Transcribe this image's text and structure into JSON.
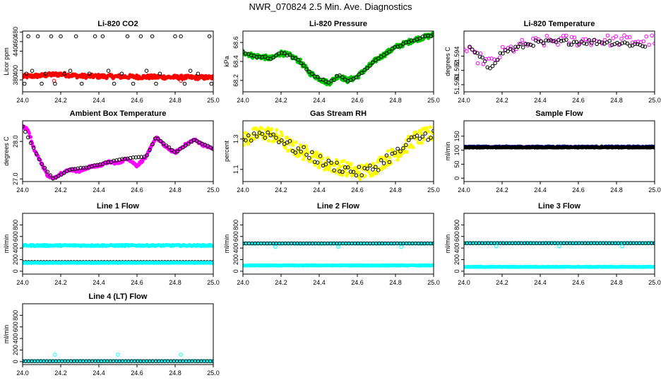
{
  "page_title": "NWR_070824  2.5 Min. Ave. Diagnostics",
  "colors": {
    "frame": "#000000",
    "black_points": "#000000",
    "red": "#ff0000",
    "green": "#00c800",
    "magenta": "#ff00ff",
    "yellow": "#ffff00",
    "cyan": "#00ffff",
    "navy": "#000080"
  },
  "chart_data": [
    {
      "type": "scatter",
      "title": "Li-820 CO2",
      "xlabel": "",
      "ylabel": "Licor ppm",
      "xlim": [
        24.0,
        25.0
      ],
      "ylim": [
        355,
        482
      ],
      "xticks": [
        24.0,
        24.2,
        24.4,
        24.6,
        24.8,
        25.0
      ],
      "yticks": [
        380,
        400,
        440,
        460,
        480
      ],
      "ytick_labels": [
        "380",
        "400",
        "440",
        "460",
        "480"
      ],
      "series": [
        {
          "name": "co2-dense",
          "color": "#ff0000",
          "style": "dense",
          "x": [
            24.0,
            24.1,
            24.15,
            24.2,
            24.3,
            24.5,
            24.7,
            24.9,
            25.0
          ],
          "y": [
            387,
            389,
            391,
            392,
            388,
            387,
            386,
            385,
            385
          ],
          "jitter": 4
        },
        {
          "name": "co2-sparse-red",
          "color": "#ff0000",
          "style": "open",
          "x": [
            24.165,
            24.83
          ],
          "y": [
            378,
            378
          ]
        },
        {
          "name": "co2-sparse-black",
          "color": "#000000",
          "style": "open",
          "x": [
            24.03,
            24.08,
            24.15,
            24.2,
            24.28,
            24.38,
            24.42,
            24.55,
            24.62,
            24.68,
            24.8,
            24.83,
            24.98,
            24.01,
            24.1,
            24.17,
            24.31,
            24.48,
            24.58,
            24.7,
            24.85,
            24.99,
            24.05,
            24.25,
            24.45,
            24.65,
            24.88,
            24.02,
            24.12,
            24.22,
            24.35,
            24.52,
            24.72,
            24.92
          ],
          "y": [
            471,
            471,
            471,
            471,
            471,
            471,
            471,
            471,
            471,
            471,
            471,
            471,
            471,
            372,
            372,
            372,
            372,
            372,
            372,
            372,
            372,
            372,
            399,
            399,
            399,
            399,
            399,
            393,
            393,
            393,
            393,
            393,
            393,
            393
          ]
        }
      ]
    },
    {
      "type": "scatter",
      "title": "Li-820 Pressure",
      "xlabel": "",
      "ylabel": "kPa",
      "xlim": [
        24.0,
        25.0
      ],
      "ylim": [
        68.08,
        68.72
      ],
      "xticks": [
        24.0,
        24.2,
        24.4,
        24.6,
        24.8,
        25.0
      ],
      "yticks": [
        68.2,
        68.4,
        68.6
      ],
      "ytick_labels": [
        "68.2",
        "68.4",
        "68.6"
      ],
      "series": [
        {
          "name": "pressure-dense",
          "color": "#00c800",
          "style": "dense",
          "x": [
            24.0,
            24.05,
            24.1,
            24.15,
            24.2,
            24.25,
            24.3,
            24.35,
            24.4,
            24.45,
            24.5,
            24.55,
            24.6,
            24.65,
            24.7,
            24.8,
            24.9,
            25.0
          ],
          "y": [
            68.5,
            68.46,
            68.45,
            68.43,
            68.49,
            68.46,
            68.4,
            68.28,
            68.22,
            68.17,
            68.25,
            68.2,
            68.24,
            68.33,
            68.42,
            68.55,
            68.63,
            68.68
          ],
          "jitter": 0.025
        },
        {
          "name": "pressure-open",
          "color": "#000000",
          "style": "open",
          "x": [
            24.0,
            24.05,
            24.1,
            24.15,
            24.2,
            24.25,
            24.3,
            24.35,
            24.4,
            24.45,
            24.5,
            24.55,
            24.6,
            24.65,
            24.7,
            24.8,
            24.9,
            25.0
          ],
          "y": [
            68.5,
            68.46,
            68.45,
            68.43,
            68.49,
            68.46,
            68.4,
            68.28,
            68.22,
            68.17,
            68.25,
            68.2,
            68.24,
            68.33,
            68.42,
            68.55,
            68.63,
            68.68
          ],
          "jitter": 0.01
        }
      ]
    },
    {
      "type": "scatter",
      "title": "Li-820 Temperature",
      "xlabel": "",
      "ylabel": "degrees C",
      "xlim": [
        24.0,
        25.0
      ],
      "ylim": [
        51.589,
        51.5975
      ],
      "xticks": [
        24.0,
        24.2,
        24.4,
        24.6,
        24.8,
        25.0
      ],
      "yticks": [
        51.59,
        51.592,
        51.594
      ],
      "ytick_labels": [
        "51.590",
        "51.592",
        "51.594"
      ],
      "series": [
        {
          "name": "temp-dense",
          "color": "#ff00ff",
          "style": "open",
          "x": [
            24.0,
            24.05,
            24.1,
            24.15,
            24.2,
            24.3,
            24.4,
            24.5,
            24.6,
            24.7,
            24.8,
            24.9,
            25.0
          ],
          "y": [
            51.595,
            51.594,
            51.5935,
            51.593,
            51.5945,
            51.5955,
            51.596,
            51.5962,
            51.5962,
            51.5962,
            51.5962,
            51.5962,
            51.5962
          ],
          "jitter": 0.0008
        },
        {
          "name": "temp-open",
          "color": "#000000",
          "style": "open",
          "x": [
            24.03,
            24.08,
            24.13,
            24.2,
            24.35,
            24.55,
            24.75,
            24.95
          ],
          "y": [
            51.595,
            51.594,
            51.5923,
            51.5945,
            51.5958,
            51.596,
            51.596,
            51.5955
          ],
          "jitter": 0.0004
        }
      ]
    },
    {
      "type": "scatter",
      "title": "Ambient Box Temperature",
      "xlabel": "",
      "ylabel": "degrees C",
      "xlim": [
        24.0,
        25.0
      ],
      "ylim": [
        26.93,
        28.55
      ],
      "xticks": [
        24.0,
        24.2,
        24.4,
        24.6,
        24.8,
        25.0
      ],
      "yticks": [
        27.0,
        28.0
      ],
      "ytick_labels": [
        "27.0",
        "28.0"
      ],
      "series": [
        {
          "name": "box-temp-magenta",
          "color": "#ff00ff",
          "style": "dense",
          "x": [
            24.0,
            24.03,
            24.06,
            24.1,
            24.13,
            24.16,
            24.2,
            24.25,
            24.3,
            24.35,
            24.4,
            24.45,
            24.5,
            24.55,
            24.6,
            24.65,
            24.7,
            24.75,
            24.8,
            24.85,
            24.9,
            24.95,
            25.0
          ],
          "y": [
            28.4,
            28.3,
            27.8,
            27.4,
            27.1,
            27.0,
            27.15,
            27.25,
            27.2,
            27.32,
            27.35,
            27.45,
            27.42,
            27.55,
            27.35,
            27.6,
            28.12,
            27.85,
            27.7,
            27.9,
            28.05,
            27.9,
            27.8
          ],
          "jitter": 0.03
        },
        {
          "name": "box-temp-open",
          "color": "#000000",
          "style": "open",
          "x": [
            24.0,
            24.06,
            24.1,
            24.16,
            24.25,
            24.35,
            24.45,
            24.55,
            24.65,
            24.7,
            24.8,
            24.9,
            25.0
          ],
          "y": [
            28.4,
            27.8,
            27.4,
            27.0,
            27.25,
            27.32,
            27.45,
            27.55,
            27.6,
            28.12,
            27.7,
            28.05,
            27.8
          ],
          "jitter": 0.01
        }
      ]
    },
    {
      "type": "scatter",
      "title": "Gas Stream RH",
      "xlabel": "",
      "ylabel": "percent",
      "xlim": [
        24.0,
        25.0
      ],
      "ylim": [
        1.02,
        1.42
      ],
      "xticks": [
        24.0,
        24.2,
        24.4,
        24.6,
        24.8,
        25.0
      ],
      "yticks": [
        1.1,
        1.3
      ],
      "ytick_labels": [
        "1.1",
        "1.3"
      ],
      "series": [
        {
          "name": "rh-yellow",
          "color": "#ffff00",
          "style": "dense",
          "x": [
            24.0,
            24.05,
            24.1,
            24.15,
            24.2,
            24.25,
            24.3,
            24.35,
            24.4,
            24.45,
            24.5,
            24.55,
            24.6,
            24.65,
            24.7,
            24.75,
            24.8,
            24.85,
            24.9,
            24.95,
            25.0
          ],
          "y": [
            1.3,
            1.32,
            1.34,
            1.33,
            1.3,
            1.25,
            1.22,
            1.2,
            1.16,
            1.13,
            1.12,
            1.1,
            1.08,
            1.09,
            1.12,
            1.17,
            1.2,
            1.25,
            1.3,
            1.32,
            1.34
          ],
          "jitter": 0.05
        },
        {
          "name": "rh-open",
          "color": "#000000",
          "style": "open",
          "x": [
            24.0,
            24.05,
            24.1,
            24.15,
            24.2,
            24.25,
            24.3,
            24.35,
            24.4,
            24.45,
            24.5,
            24.55,
            24.6,
            24.65,
            24.7,
            24.75,
            24.8,
            24.85,
            24.9,
            24.95,
            25.0
          ],
          "y": [
            1.3,
            1.32,
            1.34,
            1.33,
            1.3,
            1.25,
            1.22,
            1.2,
            1.16,
            1.13,
            1.12,
            1.1,
            1.08,
            1.09,
            1.12,
            1.17,
            1.2,
            1.25,
            1.3,
            1.32,
            1.34
          ],
          "jitter": 0.035
        }
      ]
    },
    {
      "type": "scatter",
      "title": "Sample Flow",
      "xlabel": "",
      "ylabel": "ml/min",
      "xlim": [
        24.0,
        25.0
      ],
      "ylim": [
        -12,
        205
      ],
      "xticks": [
        24.0,
        24.2,
        24.4,
        24.6,
        24.8,
        25.0
      ],
      "yticks": [
        0,
        50,
        100,
        150
      ],
      "ytick_labels": [
        "0",
        "50",
        "100",
        "150"
      ],
      "series": [
        {
          "name": "sample-flow-navy",
          "color": "#000080",
          "style": "dense",
          "x": [
            24.0,
            25.0
          ],
          "y": [
            112,
            112
          ],
          "jitter": 2
        },
        {
          "name": "sample-flow-open",
          "color": "#000000",
          "style": "dense",
          "x": [
            24.0,
            25.0
          ],
          "y": [
            110,
            110
          ],
          "jitter": 1
        }
      ]
    },
    {
      "type": "scatter",
      "title": "Line 1 Flow",
      "xlabel": "",
      "ylabel": "ml/min",
      "xlim": [
        24.0,
        25.0
      ],
      "ylim": [
        -50,
        1000
      ],
      "xticks": [
        24.0,
        24.2,
        24.4,
        24.6,
        24.8,
        25.0
      ],
      "yticks": [
        0,
        200,
        400,
        600,
        800
      ],
      "ytick_labels": [
        "0",
        "200",
        "400",
        "600",
        "800"
      ],
      "series": [
        {
          "name": "line1-cyan",
          "color": "#00ffff",
          "style": "dense",
          "x": [
            24.0,
            25.0
          ],
          "y": [
            445,
            445
          ],
          "jitter": 12
        },
        {
          "name": "line1-black",
          "color": "#000000",
          "style": "open",
          "x": [
            24.0,
            25.0
          ],
          "y": [
            160,
            160
          ],
          "jitter": 0,
          "count": 64
        },
        {
          "name": "line1-cyan-low",
          "color": "#00ffff",
          "style": "dense",
          "x": [
            24.0,
            25.0
          ],
          "y": [
            145,
            145
          ],
          "jitter": 3
        }
      ]
    },
    {
      "type": "scatter",
      "title": "Line 2 Flow",
      "xlabel": "",
      "ylabel": "ml/min",
      "xlim": [
        24.0,
        25.0
      ],
      "ylim": [
        -50,
        1000
      ],
      "xticks": [
        24.0,
        24.2,
        24.4,
        24.6,
        24.8,
        25.0
      ],
      "yticks": [
        0,
        200,
        400,
        600,
        800
      ],
      "ytick_labels": [
        "0",
        "200",
        "400",
        "600",
        "800"
      ],
      "series": [
        {
          "name": "line2-cyan-low",
          "color": "#00ffff",
          "style": "dense",
          "x": [
            24.0,
            25.0
          ],
          "y": [
            100,
            100
          ],
          "jitter": 5
        },
        {
          "name": "line2-cyan-high",
          "color": "#00ffff",
          "style": "dense",
          "x": [
            24.0,
            25.0
          ],
          "y": [
            480,
            480
          ],
          "jitter": 4
        },
        {
          "name": "line2-black",
          "color": "#000000",
          "style": "open",
          "x": [
            24.0,
            25.0
          ],
          "y": [
            480,
            480
          ],
          "jitter": 0,
          "count": 64
        },
        {
          "name": "line2-cyan-dips",
          "color": "#00ffff",
          "style": "open",
          "x": [
            24.17,
            24.5,
            24.83
          ],
          "y": [
            420,
            420,
            420
          ]
        }
      ]
    },
    {
      "type": "scatter",
      "title": "Line 3 Flow",
      "xlabel": "",
      "ylabel": "ml/min",
      "xlim": [
        24.0,
        25.0
      ],
      "ylim": [
        -50,
        1000
      ],
      "xticks": [
        24.0,
        24.2,
        24.4,
        24.6,
        24.8,
        25.0
      ],
      "yticks": [
        0,
        200,
        400,
        600,
        800
      ],
      "ytick_labels": [
        "0",
        "200",
        "400",
        "600",
        "800"
      ],
      "series": [
        {
          "name": "line3-cyan-low",
          "color": "#00ffff",
          "style": "dense",
          "x": [
            24.0,
            25.0
          ],
          "y": [
            75,
            75
          ],
          "jitter": 5
        },
        {
          "name": "line3-cyan-high",
          "color": "#00ffff",
          "style": "dense",
          "x": [
            24.0,
            25.0
          ],
          "y": [
            485,
            485
          ],
          "jitter": 4
        },
        {
          "name": "line3-black",
          "color": "#000000",
          "style": "open",
          "x": [
            24.0,
            25.0
          ],
          "y": [
            485,
            485
          ],
          "jitter": 0,
          "count": 64
        },
        {
          "name": "line3-cyan-dips",
          "color": "#00ffff",
          "style": "open",
          "x": [
            24.17,
            24.5,
            24.83
          ],
          "y": [
            430,
            430,
            430
          ]
        }
      ]
    },
    {
      "type": "scatter",
      "title": "Line 4 (LT) Flow",
      "xlabel": "",
      "ylabel": "ml/min",
      "xlim": [
        24.0,
        25.0
      ],
      "ylim": [
        -50,
        1000
      ],
      "xticks": [
        24.0,
        24.2,
        24.4,
        24.6,
        24.8,
        25.0
      ],
      "yticks": [
        0,
        200,
        400,
        600,
        800
      ],
      "ytick_labels": [
        "0",
        "200",
        "400",
        "600",
        "800"
      ],
      "series": [
        {
          "name": "line4-cyan",
          "color": "#00ffff",
          "style": "dense",
          "x": [
            24.0,
            25.0
          ],
          "y": [
            8,
            8
          ],
          "jitter": 3
        },
        {
          "name": "line4-black",
          "color": "#000000",
          "style": "open",
          "x": [
            24.0,
            25.0
          ],
          "y": [
            8,
            8
          ],
          "jitter": 0,
          "count": 64
        },
        {
          "name": "line4-cyan-spikes",
          "color": "#00ffff",
          "style": "open",
          "x": [
            24.17,
            24.5,
            24.83
          ],
          "y": [
            120,
            120,
            120
          ]
        }
      ]
    }
  ]
}
